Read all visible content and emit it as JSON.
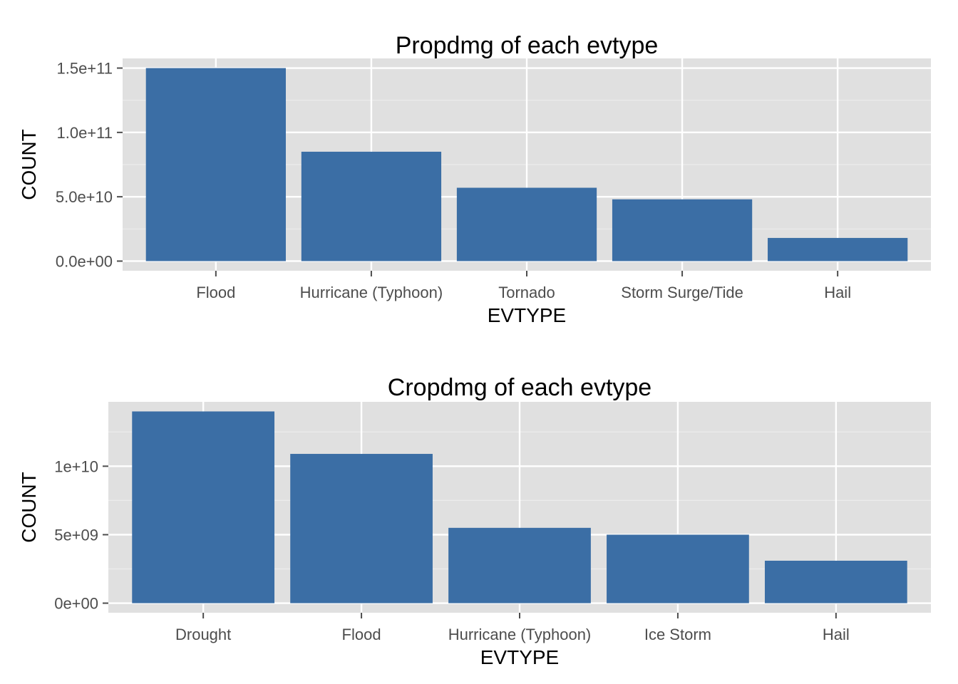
{
  "colors": {
    "bar": "#3b6ea5",
    "panel": "#e0e0e0",
    "grid_major": "#ffffff",
    "grid_minor": "#ececec",
    "tick": "#4d4d4d"
  },
  "chart_data": [
    {
      "type": "bar",
      "title": "Propdmg of each evtype",
      "xlabel": "EVTYPE",
      "ylabel": "COUNT",
      "categories": [
        "Flood",
        "Hurricane (Typhoon)",
        "Tornado",
        "Storm Surge/Tide",
        "Hail"
      ],
      "values": [
        150000000000,
        85000000000,
        57000000000,
        48000000000,
        18000000000
      ],
      "ylim": [
        -7500000000,
        157500000000
      ],
      "yticks": [
        0,
        50000000000,
        100000000000,
        150000000000
      ],
      "ytick_labels": [
        "0.0e+00",
        "5.0e+10",
        "1.0e+11",
        "1.5e+11"
      ],
      "grid": true,
      "legend": "none"
    },
    {
      "type": "bar",
      "title": "Cropdmg of each evtype",
      "xlabel": "EVTYPE",
      "ylabel": "COUNT",
      "categories": [
        "Drought",
        "Flood",
        "Hurricane (Typhoon)",
        "Ice Storm",
        "Hail"
      ],
      "values": [
        14000000000,
        10900000000,
        5500000000,
        5000000000,
        3100000000
      ],
      "ylim": [
        -700000000,
        14700000000
      ],
      "yticks": [
        0,
        5000000000,
        10000000000
      ],
      "ytick_labels": [
        "0e+00",
        "5e+09",
        "1e+10"
      ],
      "grid": true,
      "legend": "none"
    }
  ]
}
